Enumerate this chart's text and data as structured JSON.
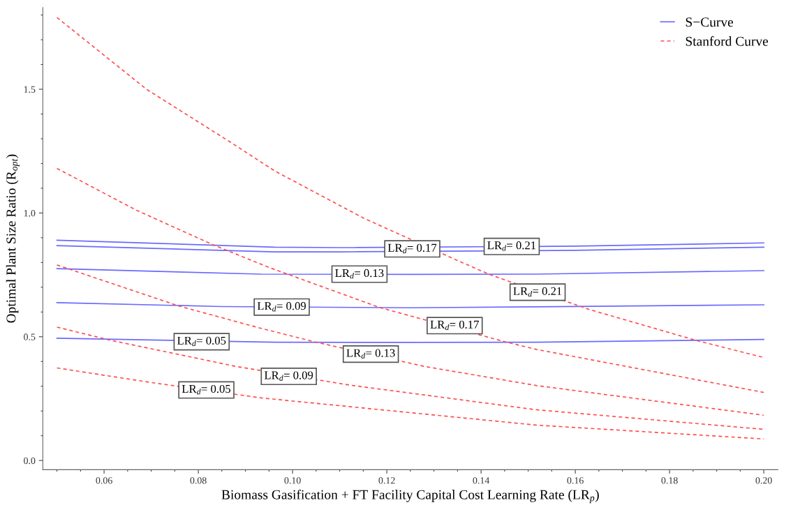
{
  "chart_data": {
    "type": "line",
    "xlabel": "Biomass Gasification + FT Facility Capital Cost Learning Rate (LR$_{p}$)",
    "ylabel": "Optimal Plant Size Ratio (R$_{opt}$)",
    "xlim": [
      0.047,
      0.203
    ],
    "ylim": [
      -0.037,
      1.83
    ],
    "xticks": [
      {
        "value": 0.06,
        "label": "0.06"
      },
      {
        "value": 0.08,
        "label": "0.08"
      },
      {
        "value": 0.1,
        "label": "0.10"
      },
      {
        "value": 0.12,
        "label": "0.12"
      },
      {
        "value": 0.14,
        "label": "0.14"
      },
      {
        "value": 0.16,
        "label": "0.16"
      },
      {
        "value": 0.18,
        "label": "0.18"
      },
      {
        "value": 0.2,
        "label": "0.20"
      }
    ],
    "yticks": [
      {
        "value": 0,
        "label": "0.0"
      },
      {
        "value": 0.5,
        "label": "0.5"
      },
      {
        "value": 1.0,
        "label": "1.0"
      },
      {
        "value": 1.5,
        "label": "1.5"
      }
    ],
    "grid": false,
    "legend": "top right",
    "series": [
      {
        "name": "S−Curve",
        "color": "#6a6aff",
        "line_style": "solid",
        "x": [
          0.05,
          0.0962,
          0.11,
          0.16,
          0.2
        ],
        "values": [
          0.89,
          0.862,
          0.86,
          0.866,
          0.879
        ]
      },
      {
        "color": "#6a6aff",
        "line_style": "solid",
        "x": [
          0.05,
          0.0962,
          0.11,
          0.16,
          0.2
        ],
        "values": [
          0.868,
          0.843,
          0.843,
          0.849,
          0.862
        ]
      },
      {
        "color": "#6a6aff",
        "line_style": "solid",
        "x": [
          0.05,
          0.0933,
          0.125,
          0.1517,
          0.2
        ],
        "values": [
          0.775,
          0.753,
          0.752,
          0.753,
          0.767
        ]
      },
      {
        "color": "#6a6aff",
        "line_style": "solid",
        "x": [
          0.05,
          0.085,
          0.125,
          0.1517,
          0.2
        ],
        "values": [
          0.638,
          0.622,
          0.617,
          0.621,
          0.629
        ]
      },
      {
        "color": "#6a6aff",
        "line_style": "solid",
        "x": [
          0.05,
          0.0962,
          0.125,
          0.1517,
          0.2
        ],
        "values": [
          0.494,
          0.478,
          0.477,
          0.478,
          0.489
        ]
      },
      {
        "name": "Stanford Curve",
        "color": "#ff4d4d",
        "line_style": "dashed",
        "x": [
          0.05,
          0.069,
          0.0865,
          0.0962,
          0.115,
          0.1356,
          0.142,
          0.163,
          0.1855,
          0.2
        ],
        "values": [
          1.79,
          1.5,
          1.29,
          1.17,
          0.98,
          0.803,
          0.75,
          0.61,
          0.486,
          0.416
        ]
      },
      {
        "color": "#ff4d4d",
        "line_style": "dashed",
        "x": [
          0.05,
          0.067,
          0.0832,
          0.095,
          0.1185,
          0.145,
          0.1517,
          0.2
        ],
        "values": [
          1.18,
          1.01,
          0.871,
          0.78,
          0.618,
          0.48,
          0.449,
          0.275
        ]
      },
      {
        "color": "#ff4d4d",
        "line_style": "dashed",
        "x": [
          0.05,
          0.0759,
          0.0933,
          0.105,
          0.128,
          0.1517,
          0.2
        ],
        "values": [
          0.79,
          0.624,
          0.534,
          0.478,
          0.38,
          0.303,
          0.183
        ]
      },
      {
        "color": "#ff4d4d",
        "line_style": "dashed",
        "x": [
          0.05,
          0.0613,
          0.088,
          0.112,
          0.1517,
          0.2
        ],
        "values": [
          0.539,
          0.486,
          0.38,
          0.305,
          0.205,
          0.126
        ]
      },
      {
        "color": "#ff4d4d",
        "line_style": "dashed",
        "x": [
          0.05,
          0.07,
          0.0933,
          0.1517,
          0.2
        ],
        "values": [
          0.374,
          0.315,
          0.253,
          0.143,
          0.087
        ]
      }
    ],
    "annotations": [
      {
        "text": "LR$_{d}$= 0.21",
        "x": 0.1465,
        "y": 0.865
      },
      {
        "text": "LR$_{d}$= 0.17",
        "x": 0.1254,
        "y": 0.855
      },
      {
        "text": "LR$_{d}$= 0.13",
        "x": 0.1142,
        "y": 0.753
      },
      {
        "text": "LR$_{d}$= 0.09",
        "x": 0.0977,
        "y": 0.62
      },
      {
        "text": "LR$_{d}$= 0.05",
        "x": 0.0807,
        "y": 0.48
      },
      {
        "text": "LR$_{d}$= 0.21",
        "x": 0.152,
        "y": 0.68
      },
      {
        "text": "LR$_{d}$= 0.17",
        "x": 0.1344,
        "y": 0.545
      },
      {
        "text": "LR$_{d}$= 0.13",
        "x": 0.1166,
        "y": 0.43
      },
      {
        "text": "LR$_{d}$= 0.09",
        "x": 0.0992,
        "y": 0.34
      },
      {
        "text": "LR$_{d}$= 0.05",
        "x": 0.0817,
        "y": 0.285
      }
    ]
  }
}
